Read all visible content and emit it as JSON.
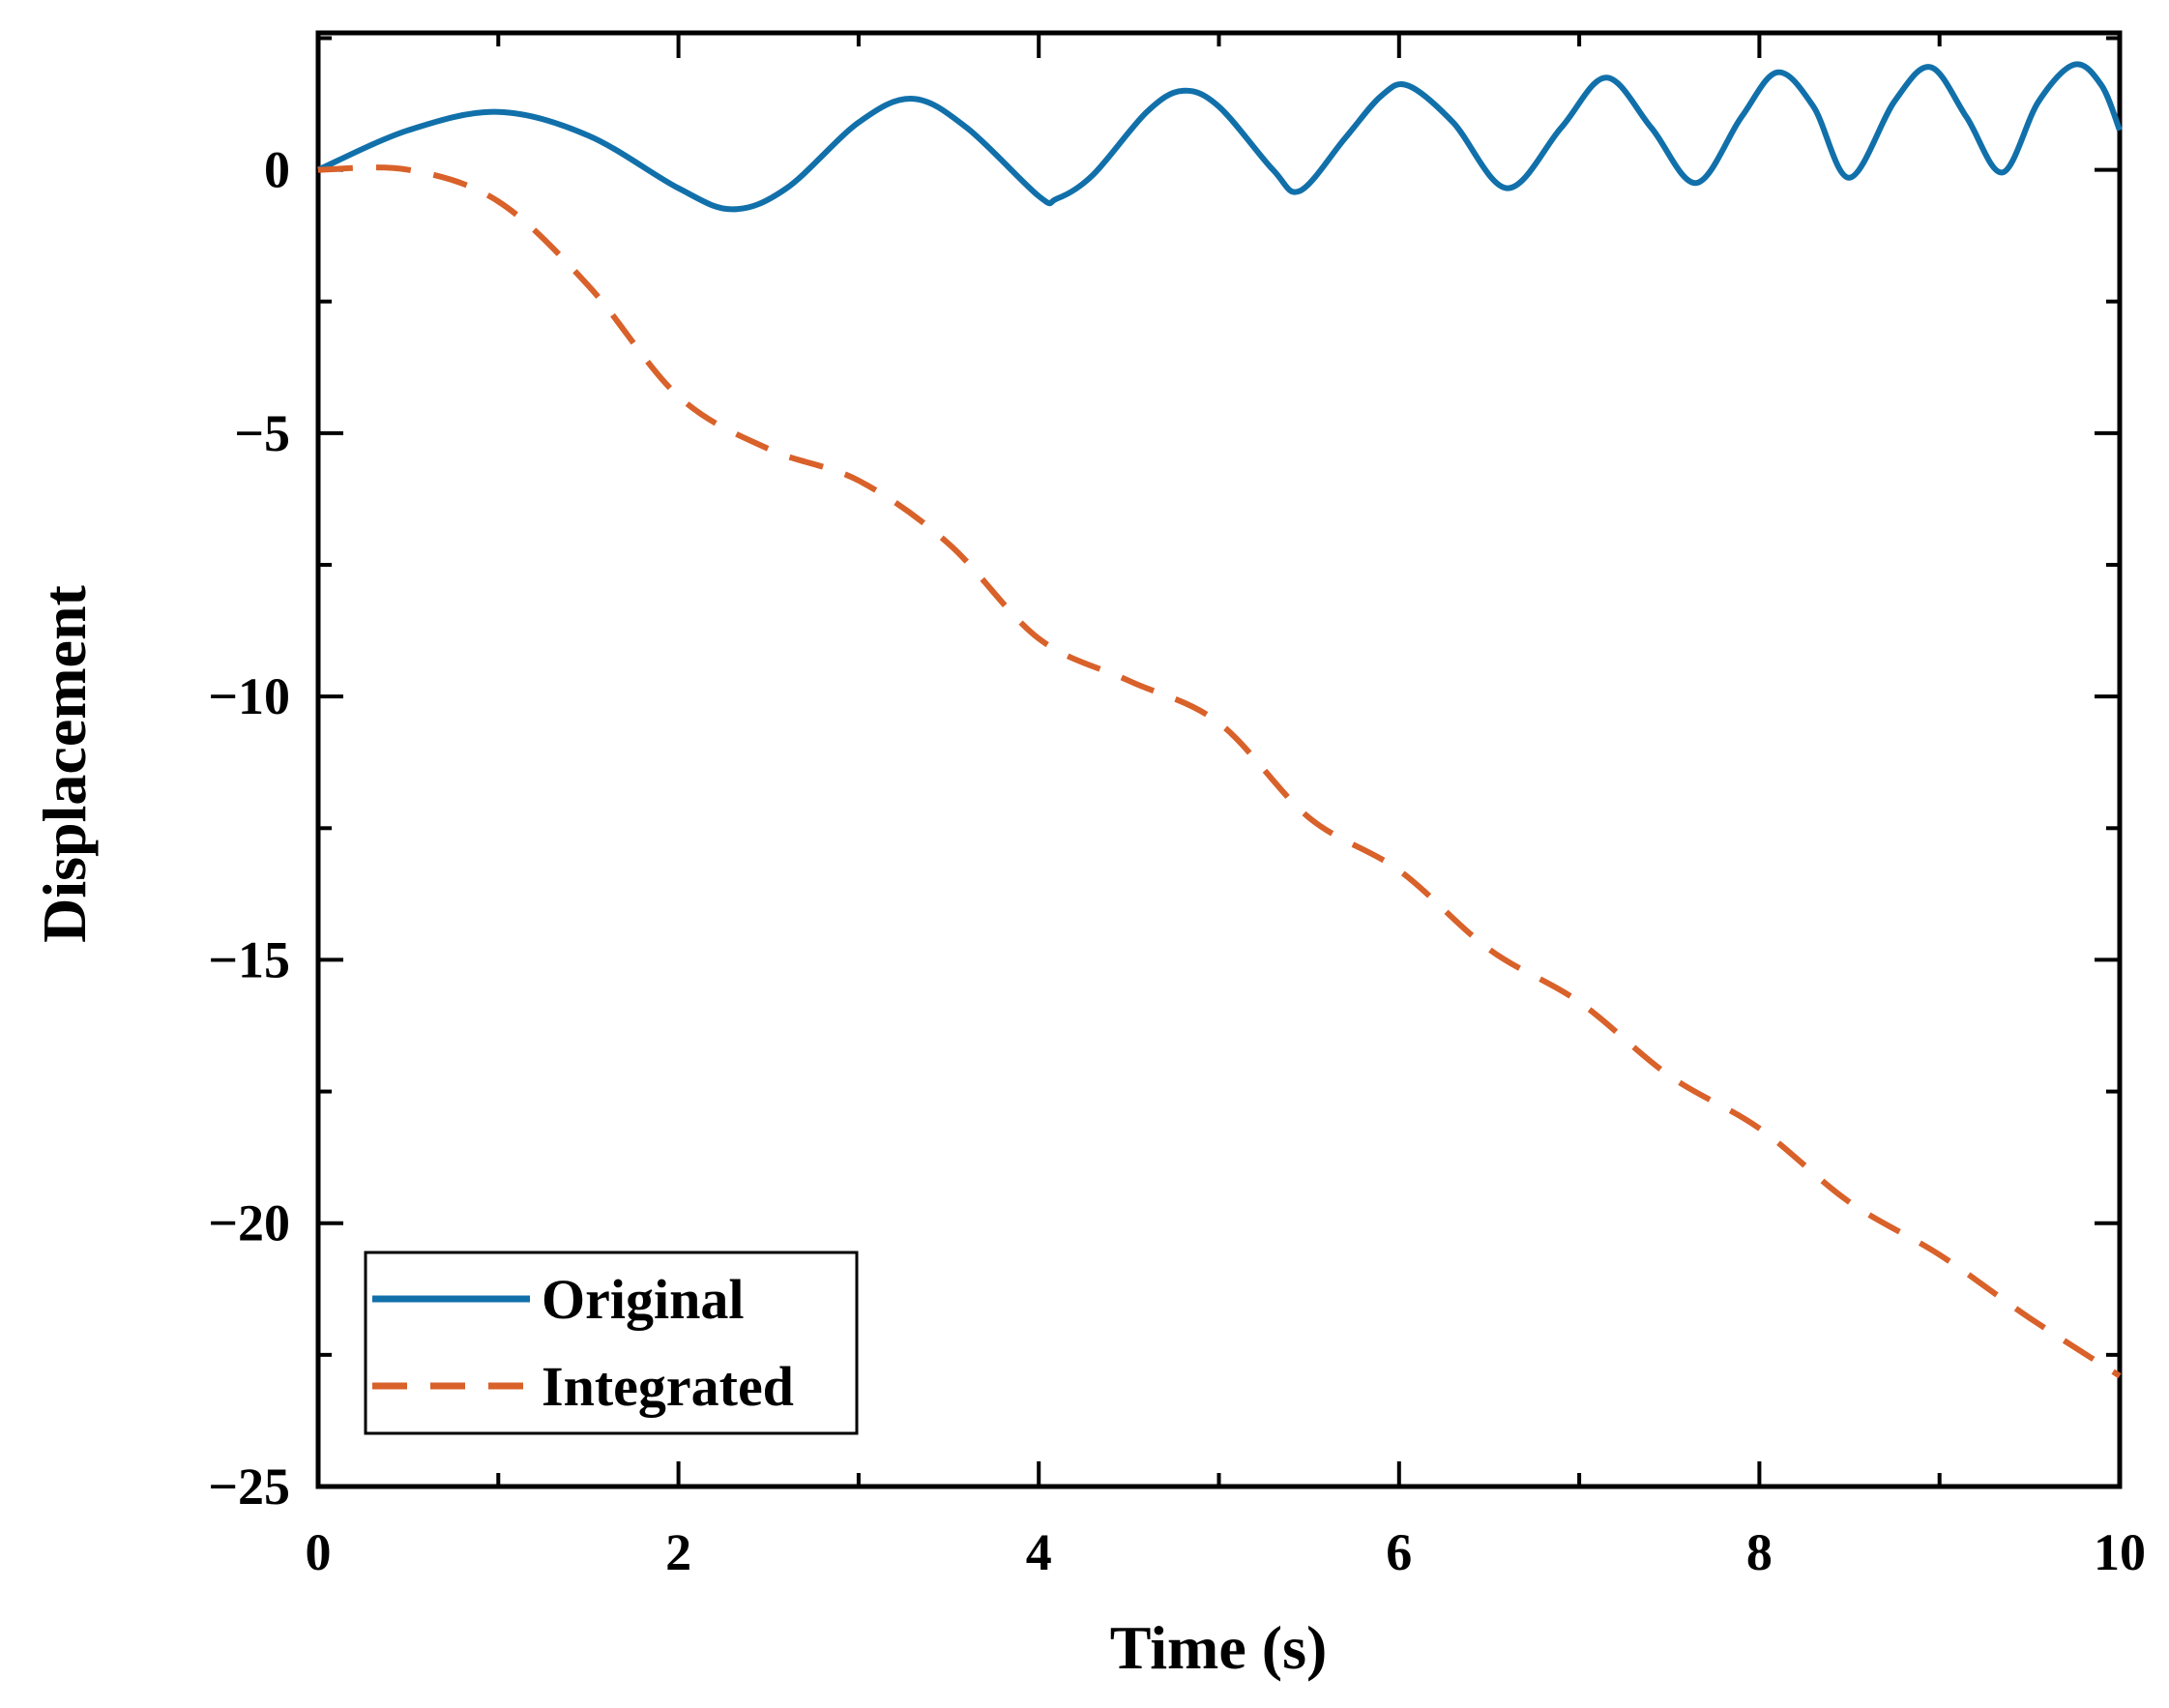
{
  "chart_data": {
    "type": "line",
    "title": "",
    "xlabel": "Time (s)",
    "ylabel": "Displacement",
    "xlim": [
      0,
      10
    ],
    "ylim": [
      -25,
      2.6
    ],
    "x_ticks": [
      0,
      2,
      4,
      6,
      8,
      10
    ],
    "x_tick_labels": [
      "0",
      "2",
      "4",
      "6",
      "8",
      "10"
    ],
    "y_ticks": [
      0,
      -5,
      -10,
      -15,
      -20,
      -25
    ],
    "y_tick_labels": [
      "0",
      "−5",
      "−10",
      "−15",
      "−20",
      "−25"
    ],
    "grid": false,
    "legend_position": "bottom-left",
    "series": [
      {
        "name": "Original",
        "color": "#1170aa",
        "style": "solid",
        "x": [
          0,
          0.5,
          1.0,
          1.5,
          2.0,
          2.3,
          2.6,
          3.0,
          3.3,
          3.6,
          4.0,
          4.1,
          4.3,
          4.6,
          4.8,
          5.0,
          5.3,
          5.45,
          5.7,
          5.9,
          6.05,
          6.3,
          6.6,
          6.9,
          7.15,
          7.4,
          7.65,
          7.9,
          8.1,
          8.3,
          8.5,
          8.75,
          8.95,
          9.15,
          9.35,
          9.55,
          9.75,
          9.9,
          10.0
        ],
        "y": [
          0,
          0.75,
          1.1,
          0.65,
          -0.35,
          -0.75,
          -0.35,
          0.9,
          1.35,
          0.8,
          -0.5,
          -0.55,
          -0.1,
          1.1,
          1.5,
          1.2,
          0.0,
          -0.4,
          0.6,
          1.4,
          1.6,
          0.9,
          -0.35,
          0.8,
          1.75,
          0.8,
          -0.25,
          1.0,
          1.85,
          1.2,
          -0.15,
          1.3,
          1.95,
          1.0,
          -0.05,
          1.3,
          2.0,
          1.6,
          0.75
        ]
      },
      {
        "name": "Integrated",
        "color": "#d9612a",
        "style": "dashed",
        "x": [
          0,
          0.5,
          1.0,
          1.5,
          2.0,
          2.5,
          3.0,
          3.5,
          4.0,
          4.5,
          5.0,
          5.5,
          6.0,
          6.5,
          7.0,
          7.5,
          8.0,
          8.5,
          9.0,
          9.5,
          10.0
        ],
        "y": [
          0,
          0.0,
          -0.6,
          -2.2,
          -4.3,
          -5.3,
          -5.9,
          -7.1,
          -8.9,
          -9.7,
          -10.5,
          -12.3,
          -13.3,
          -14.8,
          -15.8,
          -17.2,
          -18.2,
          -19.6,
          -20.6,
          -21.8,
          -22.9
        ]
      }
    ]
  }
}
